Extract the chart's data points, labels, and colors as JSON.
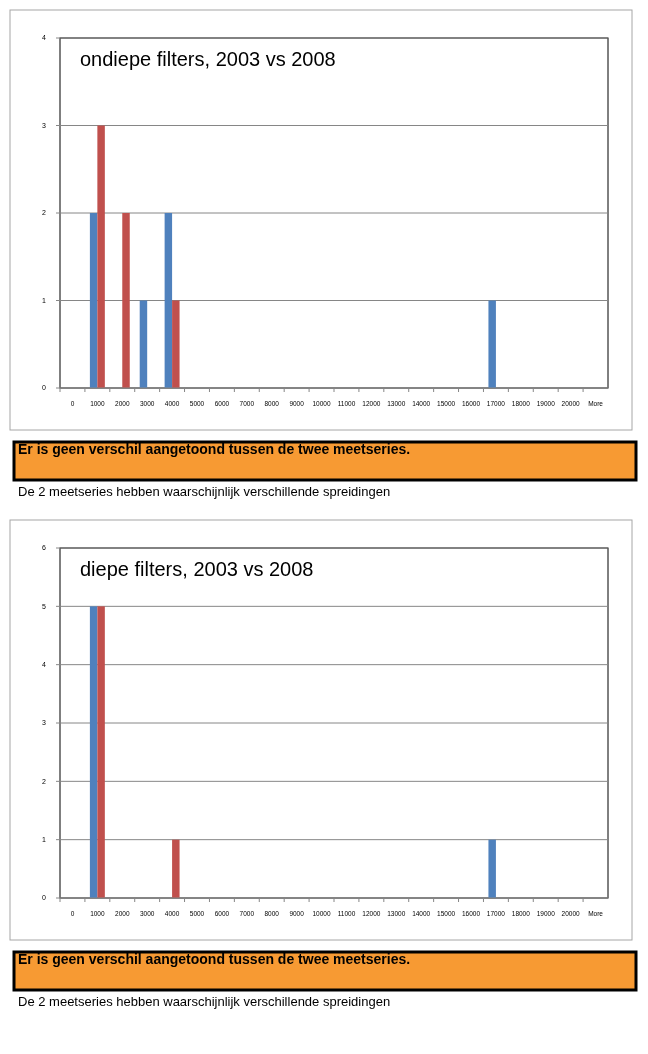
{
  "chart_data": [
    {
      "type": "bar",
      "title": "ondiepe filters, 2003 vs 2008",
      "categories": [
        "0",
        "1000",
        "2000",
        "3000",
        "4000",
        "5000",
        "6000",
        "7000",
        "8000",
        "9000",
        "10000",
        "11000",
        "12000",
        "13000",
        "14000",
        "15000",
        "16000",
        "17000",
        "18000",
        "19000",
        "20000",
        "More"
      ],
      "series": [
        {
          "color": "#4f81bd",
          "values": [
            0,
            2,
            0,
            1,
            2,
            0,
            0,
            0,
            0,
            0,
            0,
            0,
            0,
            0,
            0,
            0,
            0,
            1,
            0,
            0,
            0,
            0
          ]
        },
        {
          "color": "#c0504d",
          "values": [
            0,
            3,
            2,
            0,
            1,
            0,
            0,
            0,
            0,
            0,
            0,
            0,
            0,
            0,
            0,
            0,
            0,
            0,
            0,
            0,
            0,
            0
          ]
        }
      ],
      "ylim": [
        0,
        4
      ],
      "yticks": [
        0,
        1,
        2,
        3,
        4
      ],
      "grid": "y",
      "annotations": [
        "Er is geen verschil aangetoond tussen de twee meetseries.",
        "De 2 meetseries hebben waarschijnlijk verschillende spreidingen"
      ]
    },
    {
      "type": "bar",
      "title": "diepe filters, 2003 vs 2008",
      "categories": [
        "0",
        "1000",
        "2000",
        "3000",
        "4000",
        "5000",
        "6000",
        "7000",
        "8000",
        "9000",
        "10000",
        "11000",
        "12000",
        "13000",
        "14000",
        "15000",
        "16000",
        "17000",
        "18000",
        "19000",
        "20000",
        "More"
      ],
      "series": [
        {
          "color": "#4f81bd",
          "values": [
            0,
            5,
            0,
            0,
            0,
            0,
            0,
            0,
            0,
            0,
            0,
            0,
            0,
            0,
            0,
            0,
            0,
            1,
            0,
            0,
            0,
            0
          ]
        },
        {
          "color": "#c0504d",
          "values": [
            0,
            5,
            0,
            0,
            1,
            0,
            0,
            0,
            0,
            0,
            0,
            0,
            0,
            0,
            0,
            0,
            0,
            0,
            0,
            0,
            0,
            0
          ]
        }
      ],
      "ylim": [
        0,
        6
      ],
      "yticks": [
        0,
        1,
        2,
        3,
        4,
        5,
        6
      ],
      "grid": "y",
      "annotations": [
        "Er is geen verschil aangetoond tussen de twee meetseries.",
        "De 2 meetseries hebben waarschijnlijk verschillende spreidingen"
      ]
    }
  ]
}
